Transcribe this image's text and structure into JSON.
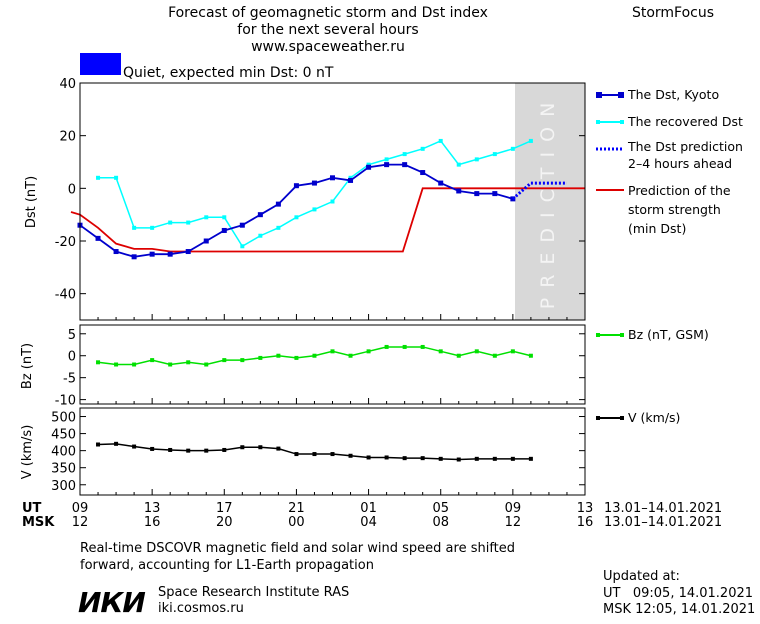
{
  "header": {
    "title_lines": [
      "Forecast of geomagnetic storm and Dst index",
      "for the next several hours",
      "www.spaceweather.ru"
    ],
    "brand": "StormFocus"
  },
  "status": {
    "color": "#0000ff",
    "text": "Quiet, expected min Dst: 0 nT"
  },
  "prediction_label": "PREDICTION",
  "legend": {
    "dst": "The Dst, Kyoto",
    "recovered": "The recovered Dst",
    "prediction_l1": "The Dst prediction",
    "prediction_l2": "2–4 hours ahead",
    "strength_l1": "Prediction of the",
    "strength_l2": "storm strength",
    "strength_l3": "(min Dst)",
    "bz": "Bz (nT, GSM)",
    "v": "V (km/s)"
  },
  "time_axis": {
    "ut_label": "UT",
    "msk_label": "MSK",
    "ut_ticks": [
      "09",
      "13",
      "17",
      "21",
      "01",
      "05",
      "09",
      "13"
    ],
    "msk_ticks": [
      "12",
      "16",
      "20",
      "00",
      "04",
      "08",
      "12",
      "16"
    ],
    "ut_range": "13.01–14.01.2021",
    "msk_range": "13.01–14.01.2021"
  },
  "footer": {
    "note_l1": "Real-time DSCOVR magnetic field and solar wind speed are shifted",
    "note_l2": "forward, accounting for L1-Earth propagation",
    "logo": "ИКИ",
    "institute": "Space Research Institute RAS",
    "site": "iki.cosmos.ru",
    "updated_label": "Updated at:",
    "updated_ut": "UT   09:05, 14.01.2021",
    "updated_msk": "MSK 12:05, 14.01.2021"
  },
  "colors": {
    "dst": "#0000cc",
    "recovered": "#00ffff",
    "prediction": "#0000ff",
    "strength": "#dd0000",
    "bz": "#00e000",
    "v": "#000000",
    "prediction_band": "#d8d8d8"
  },
  "chart_data": [
    {
      "type": "line",
      "ylabel": "Dst (nT)",
      "ylim": [
        -50,
        40
      ],
      "yticks": [
        40,
        20,
        0,
        -20,
        -40
      ],
      "x_unit": "hours from 09 UT 13.01.2021",
      "xlim": [
        0,
        28
      ],
      "prediction_band": [
        24,
        28
      ],
      "series": [
        {
          "name": "The Dst, Kyoto",
          "x": [
            0,
            1,
            2,
            3,
            4,
            5,
            6,
            7,
            8,
            9,
            10,
            11,
            12,
            13,
            14,
            15,
            16,
            17,
            18,
            19,
            20,
            21,
            22,
            23,
            24
          ],
          "values": [
            -14,
            -19,
            -24,
            -26,
            -25,
            -25,
            -24,
            -20,
            -16,
            -14,
            -10,
            -6,
            1,
            2,
            4,
            3,
            8,
            9,
            9,
            6,
            2,
            -1,
            -2,
            -2,
            -4
          ]
        },
        {
          "name": "The recovered Dst",
          "x": [
            1,
            2,
            3,
            4,
            5,
            6,
            7,
            8,
            9,
            10,
            11,
            12,
            13,
            14,
            15,
            16,
            17,
            18,
            19,
            20,
            21,
            22,
            23,
            24,
            25
          ],
          "values": [
            4,
            4,
            -15,
            -15,
            -13,
            -13,
            -11,
            -11,
            -22,
            -18,
            -15,
            -11,
            -8,
            -5,
            4,
            9,
            11,
            13,
            15,
            18,
            9,
            11,
            13,
            15,
            18
          ]
        },
        {
          "name": "The Dst prediction 2–4 hours ahead",
          "x": [
            24,
            25,
            26,
            27
          ],
          "values": [
            -4,
            2,
            2,
            2
          ]
        },
        {
          "name": "Prediction of the storm strength (min Dst)",
          "x": [
            -0.5,
            0,
            1,
            2,
            3,
            4,
            5,
            6,
            17.9,
            19,
            28
          ],
          "values": [
            -9,
            -10,
            -15,
            -21,
            -23,
            -23,
            -24,
            -24,
            -24,
            0,
            0
          ]
        }
      ]
    },
    {
      "type": "line",
      "ylabel": "Bz (nT)",
      "ylim": [
        -11,
        7
      ],
      "yticks": [
        5,
        0,
        -5,
        -10
      ],
      "series": [
        {
          "name": "Bz (nT, GSM)",
          "x": [
            1,
            2,
            3,
            4,
            5,
            6,
            7,
            8,
            9,
            10,
            11,
            12,
            13,
            14,
            15,
            16,
            17,
            18,
            19,
            20,
            21,
            22,
            23,
            24,
            25
          ],
          "values": [
            -1.5,
            -2,
            -2,
            -1,
            -2,
            -1.5,
            -2,
            -1,
            -1,
            -0.5,
            0,
            -0.5,
            0,
            1,
            0,
            1,
            2,
            2,
            2,
            1,
            0,
            1,
            0,
            1,
            0
          ]
        }
      ]
    },
    {
      "type": "line",
      "ylabel": "V (km/s)",
      "ylim": [
        270,
        525
      ],
      "yticks": [
        500,
        450,
        400,
        350,
        300
      ],
      "series": [
        {
          "name": "V (km/s)",
          "x": [
            1,
            2,
            3,
            4,
            5,
            6,
            7,
            8,
            9,
            10,
            11,
            12,
            13,
            14,
            15,
            16,
            17,
            18,
            19,
            20,
            21,
            22,
            23,
            24,
            25
          ],
          "values": [
            418,
            420,
            412,
            405,
            402,
            400,
            400,
            402,
            410,
            410,
            406,
            390,
            390,
            390,
            385,
            380,
            380,
            378,
            378,
            376,
            374,
            376,
            376,
            376,
            376
          ]
        }
      ]
    }
  ]
}
